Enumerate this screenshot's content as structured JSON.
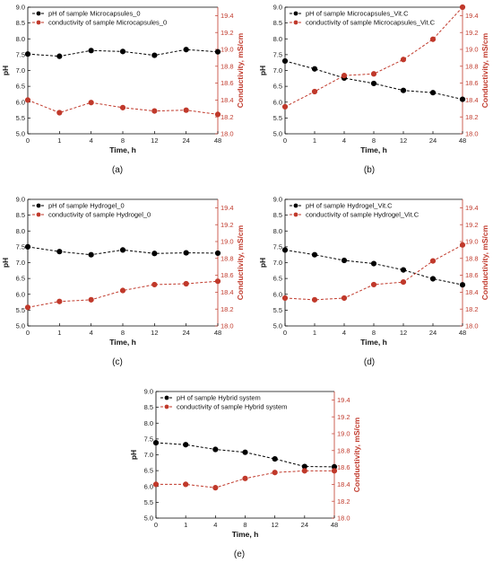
{
  "chart_data": [
    {
      "type": "line",
      "panel_label": "(a)",
      "x": [
        "0",
        "1",
        "4",
        "8",
        "12",
        "24",
        "48"
      ],
      "xlabel": "Time, h",
      "ylabel": "pH",
      "y2label": "Conductivity, mS/cm",
      "ylim": [
        5.0,
        9.0
      ],
      "yticks": [
        "5.0",
        "5.5",
        "6.0",
        "6.5",
        "7.0",
        "7.5",
        "8.0",
        "8.5",
        "9.0"
      ],
      "y2lim": [
        18.0,
        19.5
      ],
      "y2ticks": [
        "18.0",
        "18.2",
        "18.4",
        "18.6",
        "18.8",
        "19.0",
        "19.2",
        "19.4"
      ],
      "legend_position": "top-left",
      "series": [
        {
          "name": "pH of sample Microcapsules_0",
          "axis": "left",
          "color": "#000000",
          "values": [
            7.52,
            7.45,
            7.63,
            7.6,
            7.48,
            7.66,
            7.59
          ]
        },
        {
          "name": "conductivity of sample Microcapsules_0",
          "axis": "right",
          "color": "#c0392b",
          "values": [
            18.4,
            18.25,
            18.37,
            18.31,
            18.27,
            18.28,
            18.23
          ]
        }
      ]
    },
    {
      "type": "line",
      "panel_label": "(b)",
      "x": [
        "0",
        "1",
        "4",
        "8",
        "12",
        "24",
        "48"
      ],
      "xlabel": "Time, h",
      "ylabel": "pH",
      "y2label": "Conductivity, mS/cm",
      "ylim": [
        5.0,
        9.0
      ],
      "yticks": [
        "5.0",
        "5.5",
        "6.0",
        "6.5",
        "7.0",
        "7.5",
        "8.0",
        "8.5",
        "9.0"
      ],
      "y2lim": [
        18.0,
        19.5
      ],
      "y2ticks": [
        "18.0",
        "18.2",
        "18.4",
        "18.6",
        "18.8",
        "19.0",
        "19.2",
        "19.4"
      ],
      "legend_position": "top-left",
      "series": [
        {
          "name": "pH of sample Microcapsules_Vit.C",
          "axis": "left",
          "color": "#000000",
          "values": [
            7.3,
            7.05,
            6.76,
            6.59,
            6.37,
            6.3,
            6.09
          ]
        },
        {
          "name": "conductivity of sample Microcapsules_Vit.C",
          "axis": "right",
          "color": "#c0392b",
          "values": [
            18.32,
            18.5,
            18.69,
            18.71,
            18.88,
            19.12,
            19.5
          ]
        }
      ]
    },
    {
      "type": "line",
      "panel_label": "(c)",
      "x": [
        "0",
        "1",
        "4",
        "8",
        "12",
        "24",
        "48"
      ],
      "xlabel": "Time, h",
      "ylabel": "pH",
      "y2label": "Conductivity, mS/cm",
      "ylim": [
        5.0,
        9.0
      ],
      "yticks": [
        "5.0",
        "5.5",
        "6.0",
        "6.5",
        "7.0",
        "7.5",
        "8.0",
        "8.5",
        "9.0"
      ],
      "y2lim": [
        18.0,
        19.5
      ],
      "y2ticks": [
        "18.0",
        "18.2",
        "18.4",
        "18.6",
        "18.8",
        "19.0",
        "19.2",
        "19.4"
      ],
      "legend_position": "top-left",
      "series": [
        {
          "name": "pH of sample Hydrogel_0",
          "axis": "left",
          "color": "#000000",
          "values": [
            7.5,
            7.35,
            7.25,
            7.4,
            7.29,
            7.31,
            7.3
          ]
        },
        {
          "name": "conductivity of sample Hydrogel_0",
          "axis": "right",
          "color": "#c0392b",
          "values": [
            18.22,
            18.29,
            18.31,
            18.42,
            18.49,
            18.5,
            18.53
          ]
        }
      ]
    },
    {
      "type": "line",
      "panel_label": "(d)",
      "x": [
        "0",
        "1",
        "4",
        "8",
        "12",
        "24",
        "48"
      ],
      "xlabel": "Time, h",
      "ylabel": "pH",
      "y2label": "Conductivity, mS/cm",
      "ylim": [
        5.0,
        9.0
      ],
      "yticks": [
        "5.0",
        "5.5",
        "6.0",
        "6.5",
        "7.0",
        "7.5",
        "8.0",
        "8.5",
        "9.0"
      ],
      "y2lim": [
        18.0,
        19.5
      ],
      "y2ticks": [
        "18.0",
        "18.2",
        "18.4",
        "18.6",
        "18.8",
        "19.0",
        "19.2",
        "19.4"
      ],
      "legend_position": "top-left",
      "series": [
        {
          "name": "pH of sample Hydrogel_Vit.C",
          "axis": "left",
          "color": "#000000",
          "values": [
            7.4,
            7.25,
            7.07,
            6.97,
            6.77,
            6.49,
            6.3
          ]
        },
        {
          "name": "conductivity of sample Hydrogel_Vit.C",
          "axis": "right",
          "color": "#c0392b",
          "values": [
            18.33,
            18.31,
            18.33,
            18.49,
            18.52,
            18.77,
            18.96
          ]
        }
      ]
    },
    {
      "type": "line",
      "panel_label": "(e)",
      "x": [
        "0",
        "1",
        "4",
        "8",
        "12",
        "24",
        "48"
      ],
      "xlabel": "Time, h",
      "ylabel": "pH",
      "y2label": "Conductivity, mS/cm",
      "ylim": [
        5.0,
        9.0
      ],
      "yticks": [
        "5.0",
        "5.5",
        "6.0",
        "6.5",
        "7.0",
        "7.5",
        "8.0",
        "8.5",
        "9.0"
      ],
      "y2lim": [
        18.0,
        19.5
      ],
      "y2ticks": [
        "18.0",
        "18.2",
        "18.4",
        "18.6",
        "18.8",
        "19.0",
        "19.2",
        "19.4"
      ],
      "legend_position": "top-left",
      "series": [
        {
          "name": "pH of sample Hybrid system",
          "axis": "left",
          "color": "#000000",
          "values": [
            7.38,
            7.32,
            7.17,
            7.08,
            6.87,
            6.63,
            6.62
          ]
        },
        {
          "name": "conductivity of sample Hybrid system",
          "axis": "right",
          "color": "#c0392b",
          "values": [
            18.4,
            18.4,
            18.36,
            18.47,
            18.54,
            18.56,
            18.56
          ]
        }
      ]
    }
  ]
}
